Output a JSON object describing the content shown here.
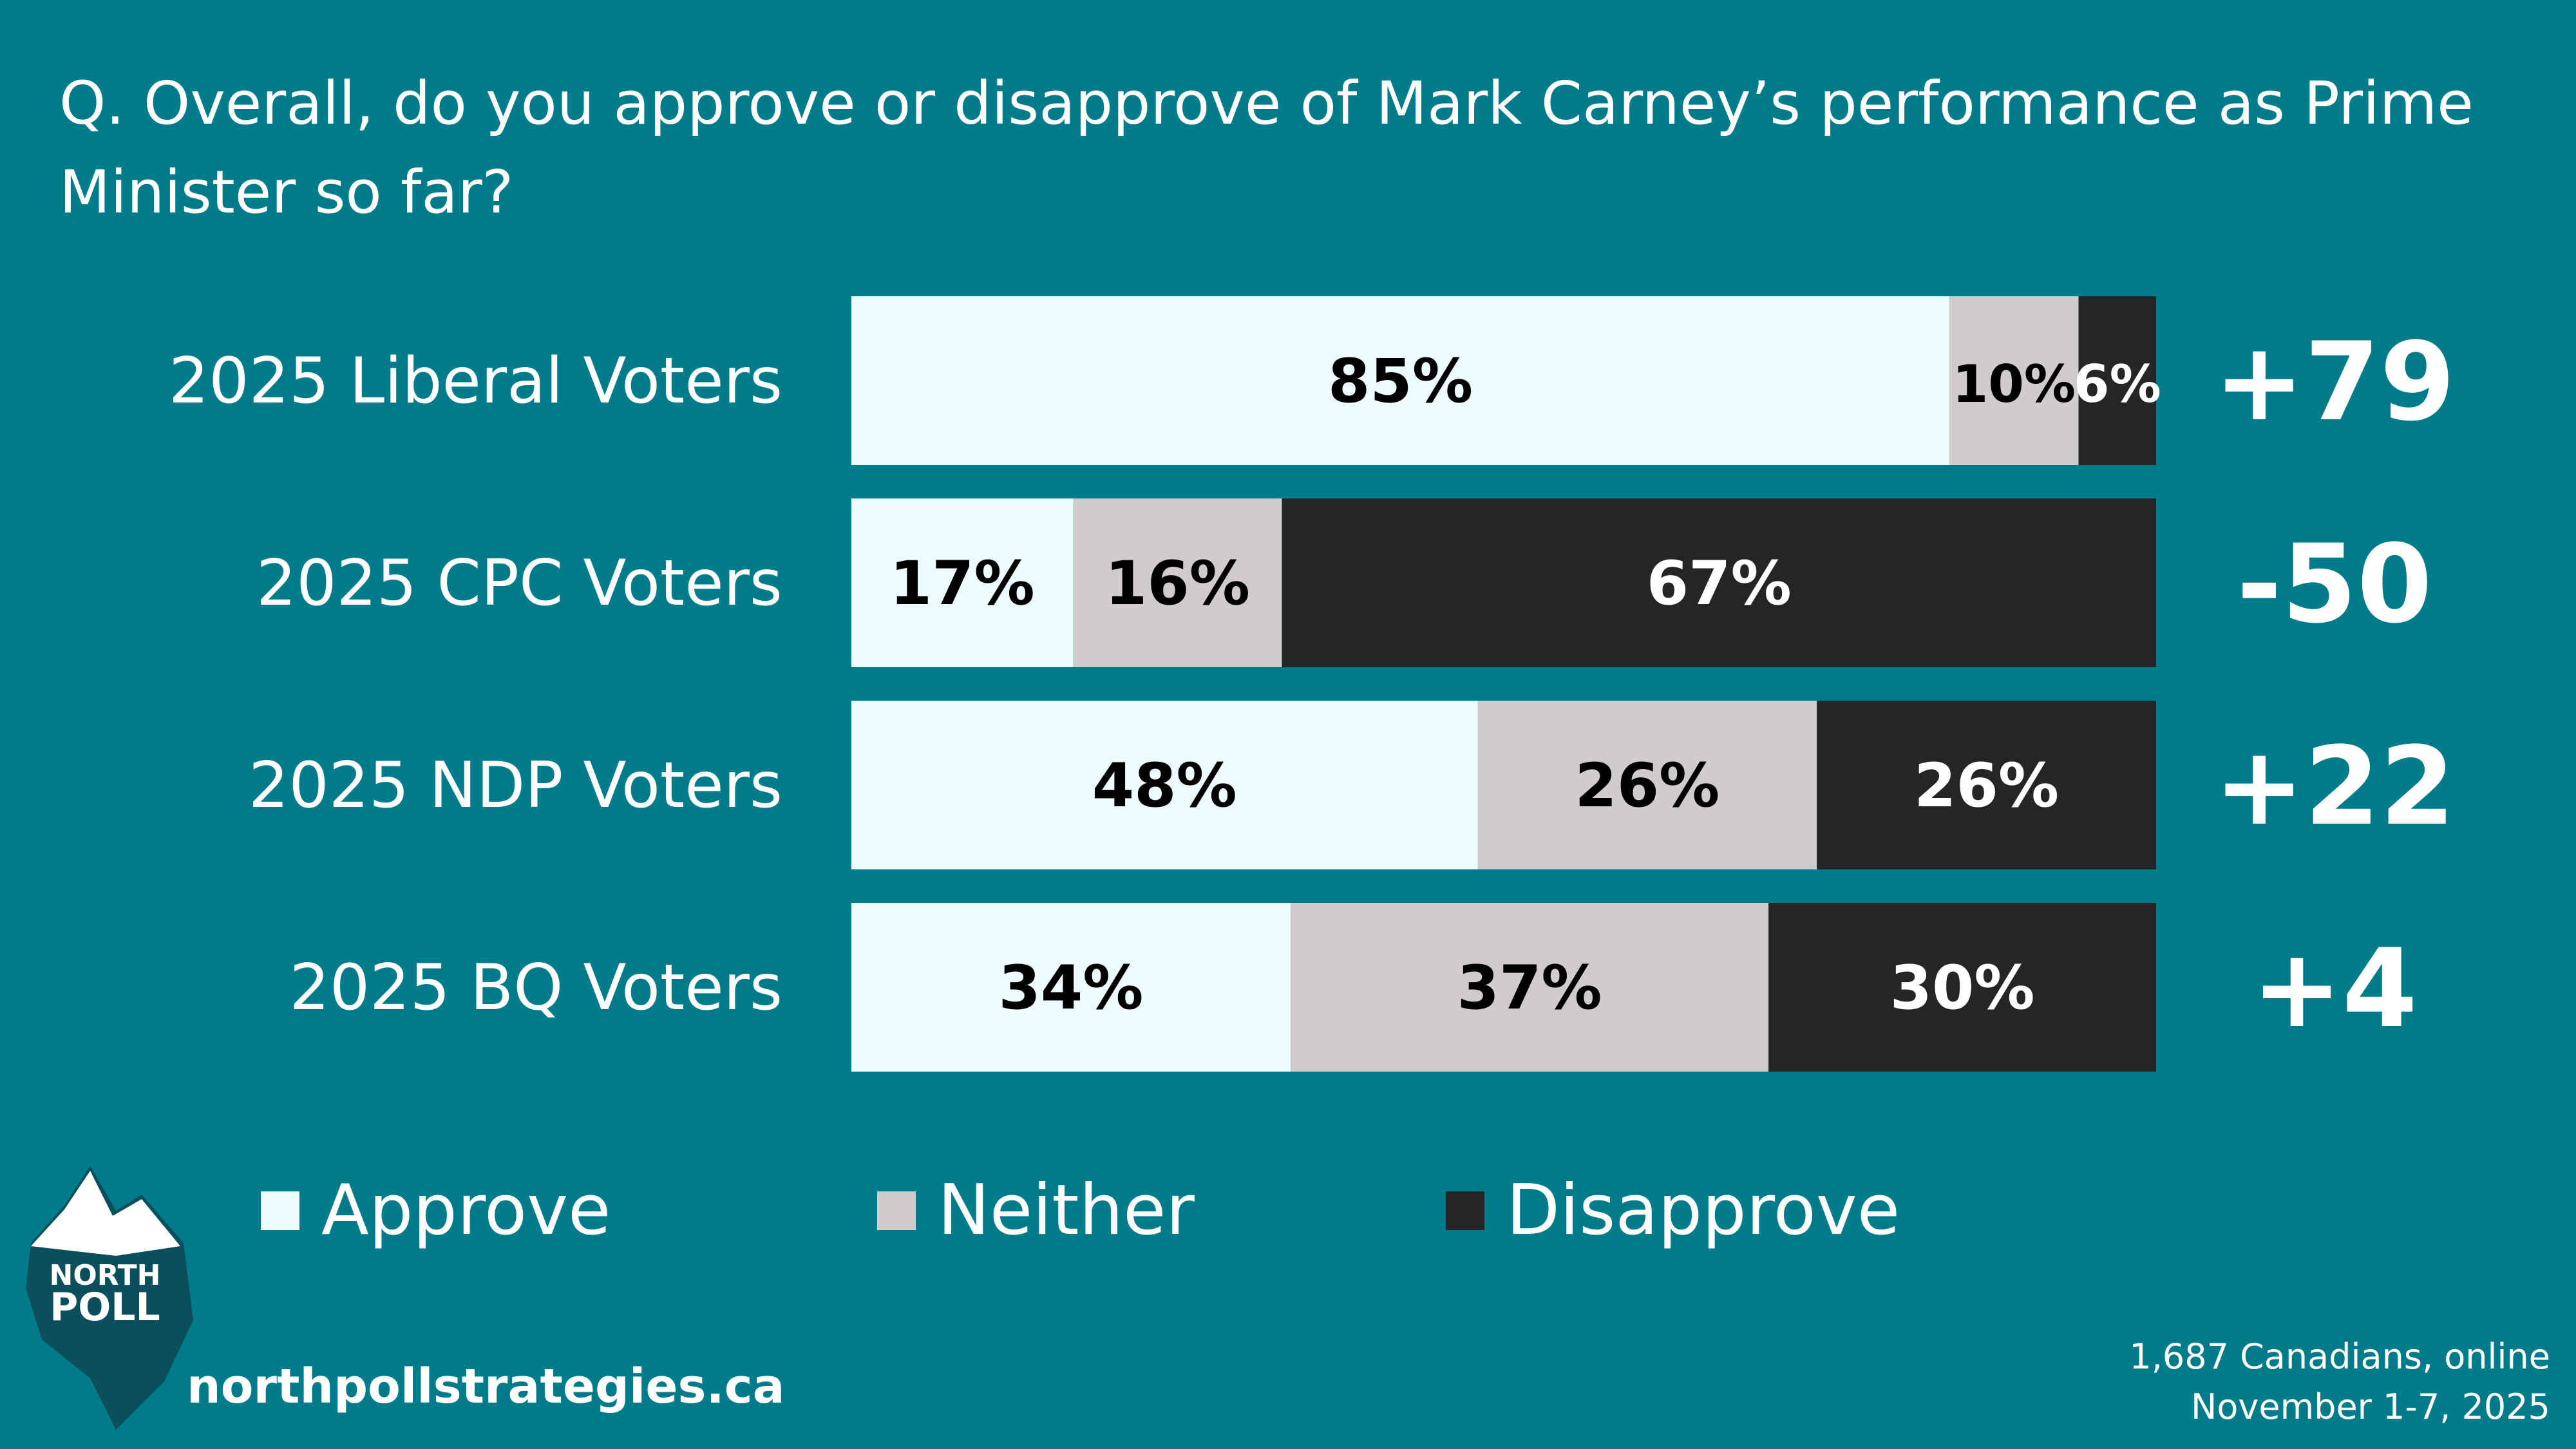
{
  "title": "Q. Overall, do you approve or disapprove of Mark Carney’s performance as Prime Minister so far?",
  "colors": {
    "background": "#007b8a",
    "approve": "#ecfcff",
    "neither": "#d0cccc",
    "disapprove": "#252525"
  },
  "chart_data": {
    "type": "bar",
    "orientation": "horizontal",
    "stacked": true,
    "categories": [
      "2025 Liberal Voters",
      "2025 CPC Voters",
      "2025 NDP Voters",
      "2025 BQ Voters"
    ],
    "series": [
      {
        "name": "Approve",
        "values": [
          85,
          17,
          48,
          34
        ],
        "labels": [
          "85%",
          "17%",
          "48%",
          "34%"
        ]
      },
      {
        "name": "Neither",
        "values": [
          10,
          16,
          26,
          37
        ],
        "labels": [
          "10%",
          "16%",
          "26%",
          "37%"
        ]
      },
      {
        "name": "Disapprove",
        "values": [
          6,
          67,
          26,
          30
        ],
        "labels": [
          "6%",
          "67%",
          "26%",
          "30%"
        ]
      }
    ],
    "net": [
      "+79",
      "-50",
      "+22",
      "+4"
    ],
    "legend": {
      "position": "bottom",
      "entries": [
        "Approve",
        "Neither",
        "Disapprove"
      ]
    },
    "grid": false
  },
  "footer": {
    "website": "northpollstrategies.ca",
    "sample": "1,687 Canadians, online",
    "dates": "November 1-7, 2025"
  },
  "logo": {
    "name": "iceberg-logo",
    "line1": "NORTH",
    "line2": "POLL"
  }
}
